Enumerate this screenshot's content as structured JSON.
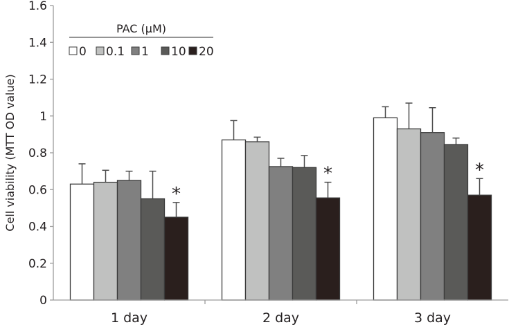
{
  "chart_data": {
    "type": "bar",
    "title": "",
    "xlabel": "",
    "ylabel": "Cell viability (MTT OD value)",
    "ylim": [
      0,
      1.6
    ],
    "yticks": [
      0,
      0.2,
      0.4,
      0.6,
      0.8,
      1,
      1.2,
      1.4,
      1.6
    ],
    "ytick_labels": [
      "0",
      "0.2",
      "0.4",
      "0.6",
      "0.8",
      "1",
      "1.2",
      "1.4",
      "1.6"
    ],
    "grid": false,
    "categories": [
      "1 day",
      "2 day",
      "3 day"
    ],
    "legend": {
      "title": "PAC (μM)",
      "placement": "top-left"
    },
    "series": [
      {
        "name": "0",
        "color": "#ffffff",
        "values": [
          0.63,
          0.87,
          0.99
        ],
        "error_upper": [
          0.74,
          0.975,
          1.05
        ]
      },
      {
        "name": "0.1",
        "color": "#c0c1c0",
        "values": [
          0.64,
          0.86,
          0.93
        ],
        "error_upper": [
          0.705,
          0.885,
          1.07
        ]
      },
      {
        "name": "1",
        "color": "#808080",
        "values": [
          0.65,
          0.725,
          0.91
        ],
        "error_upper": [
          0.7,
          0.77,
          1.045
        ]
      },
      {
        "name": "10",
        "color": "#5a5a58",
        "values": [
          0.55,
          0.72,
          0.845
        ],
        "error_upper": [
          0.7,
          0.785,
          0.88
        ]
      },
      {
        "name": "20",
        "color": "#2a1f1d",
        "values": [
          0.45,
          0.555,
          0.57
        ],
        "error_upper": [
          0.53,
          0.64,
          0.66
        ]
      }
    ],
    "annotations": [
      {
        "text": "*",
        "category": "1 day",
        "series": "20"
      },
      {
        "text": "*",
        "category": "2 day",
        "series": "20"
      },
      {
        "text": "*",
        "category": "3 day",
        "series": "20"
      }
    ]
  }
}
